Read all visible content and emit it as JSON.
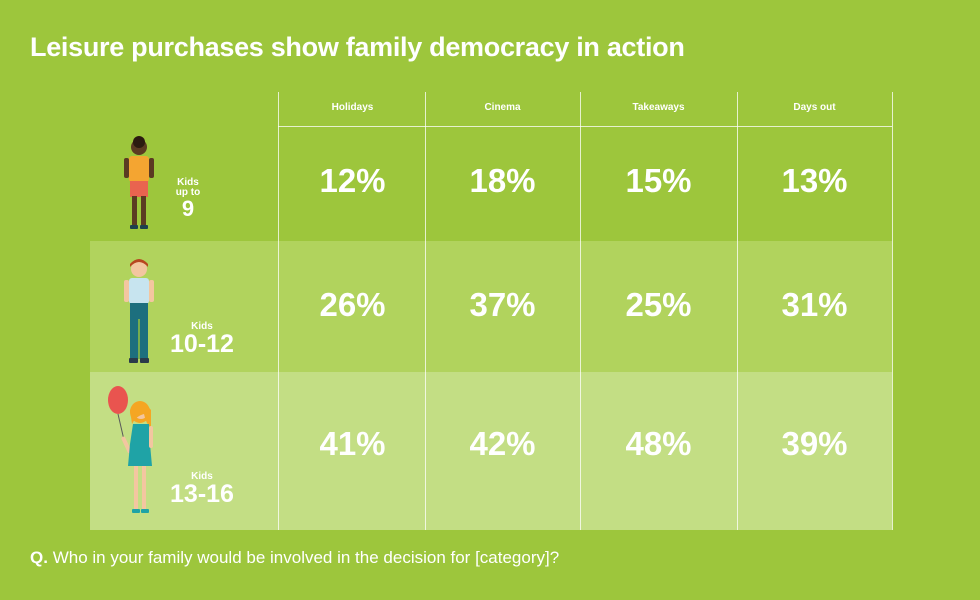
{
  "title": "Leisure purchases show family democracy in action",
  "question": {
    "prefix": "Q.",
    "text": "Who in your family would be involved in the decision for [category]?"
  },
  "chart_data": {
    "type": "table",
    "title": "Leisure purchases show family democracy in action",
    "columns": [
      "Holidays",
      "Cinema",
      "Takeaways",
      "Days out"
    ],
    "rows": [
      {
        "label_small": "Kids up to",
        "label_big": "9",
        "values": [
          "12%",
          "18%",
          "15%",
          "13%"
        ]
      },
      {
        "label_small": "Kids",
        "label_big": "10-12",
        "values": [
          "26%",
          "37%",
          "25%",
          "31%"
        ]
      },
      {
        "label_small": "Kids",
        "label_big": "13-16",
        "values": [
          "41%",
          "42%",
          "48%",
          "39%"
        ]
      }
    ]
  },
  "figures": [
    {
      "icon": "young-child-figure-icon",
      "shirt_color": "#f4a531",
      "shorts_color": "#e9644f",
      "skin_color": "#5b3a22"
    },
    {
      "icon": "boy-figure-icon",
      "shirt_color": "#c7e4ef",
      "trousers_color": "#1d6f7e",
      "hair_color": "#b8461f"
    },
    {
      "icon": "girl-with-balloon-icon",
      "dress_color": "#1fa3a6",
      "hair_color": "#f5a623",
      "balloon_color": "#e9544f"
    }
  ]
}
